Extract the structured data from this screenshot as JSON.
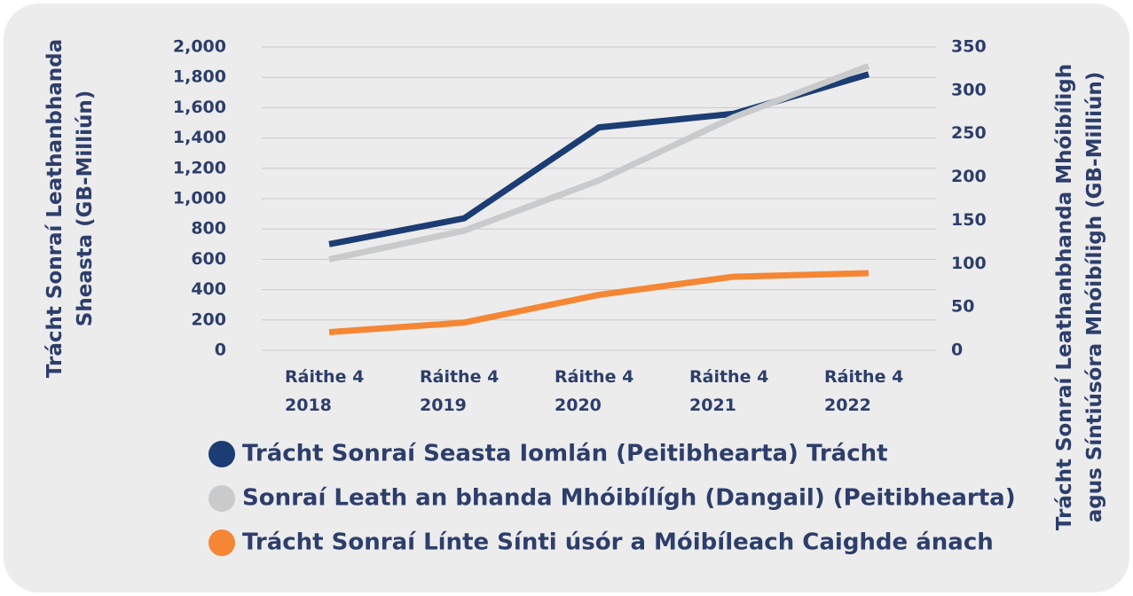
{
  "chart_data": {
    "type": "line",
    "y_label": "Trácht Sonraí Leathanbhanda Sheasta (GB-Milliún)",
    "y2_label": "Trácht Sonraí Leathanbhanda Mhóibíligh agus Síntiúsóra Mhóibíligh (GB-Milliún)",
    "categories": [
      "Ráithe 4 2018",
      "Ráithe 4 2019",
      "Ráithe 4 2020",
      "Ráithe 4 2021",
      "Ráithe 4 2022"
    ],
    "series": [
      {
        "name": "Trácht Sonraí Seasta Iomlán (Peitibhearta) Trácht",
        "color": "#1b3d73",
        "values": [
          700,
          870,
          1470,
          1560,
          1820
        ]
      },
      {
        "name": "Sonraí Leath an bhanda Mhóibílígh (Dangail) (Peitibhearta)",
        "color": "#c8cacb",
        "axis": "y2",
        "values": [
          105,
          138,
          196,
          269,
          328
        ]
      },
      {
        "name": "Trácht Sonraí Línte Sínti úsór a Móibíleach Caighde ánach",
        "color": "#f58634",
        "axis": "y2",
        "values": [
          21,
          32,
          64,
          85,
          89
        ]
      }
    ],
    "ylim": [
      0,
      2000
    ],
    "yticks": [
      0,
      200,
      400,
      600,
      800,
      {
        "value": 1000,
        "label": "1,000"
      },
      {
        "value": 1200,
        "label": "1,200"
      },
      {
        "value": 1400,
        "label": "1,400"
      },
      {
        "value": 1600,
        "label": "1,600"
      },
      {
        "value": 1800,
        "label": "1,800"
      },
      {
        "value": 2000,
        "label": "2,000"
      }
    ],
    "y2lim": [
      0,
      350
    ],
    "y2ticks": [
      0,
      50,
      100,
      150,
      200,
      250,
      300,
      350
    ],
    "grid": true
  }
}
